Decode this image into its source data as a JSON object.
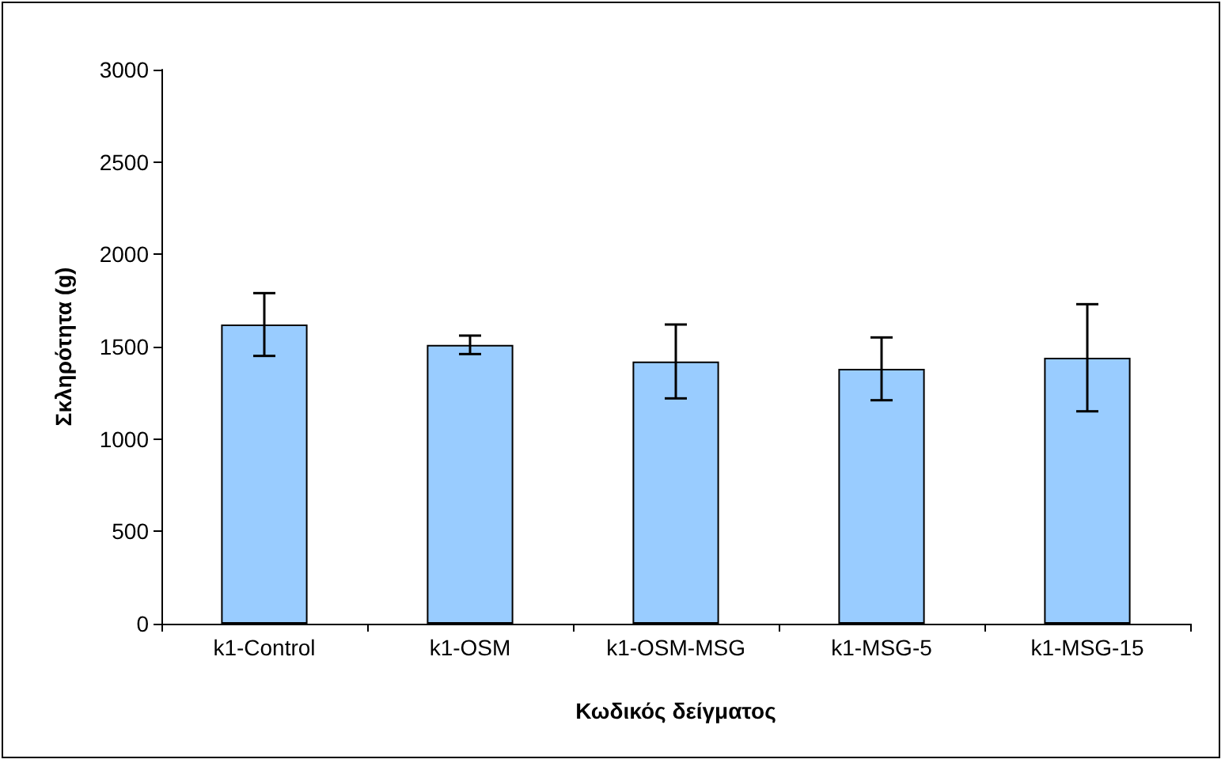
{
  "chart_data": {
    "type": "bar",
    "xlabel": "Κωδικός δείγματος",
    "ylabel": "Σκληρότητα (g)",
    "categories": [
      "k1-Control",
      "k1-OSM",
      "k1-OSM-MSG",
      "k1-MSG-5",
      "k1-MSG-15"
    ],
    "values": [
      1620,
      1510,
      1420,
      1380,
      1440
    ],
    "errors": [
      170,
      50,
      200,
      170,
      290
    ],
    "color": "#99ccff",
    "ylim": [
      0,
      3000
    ],
    "yticks": [
      0,
      500,
      1000,
      1500,
      2000,
      2500,
      3000
    ],
    "grid": false
  }
}
